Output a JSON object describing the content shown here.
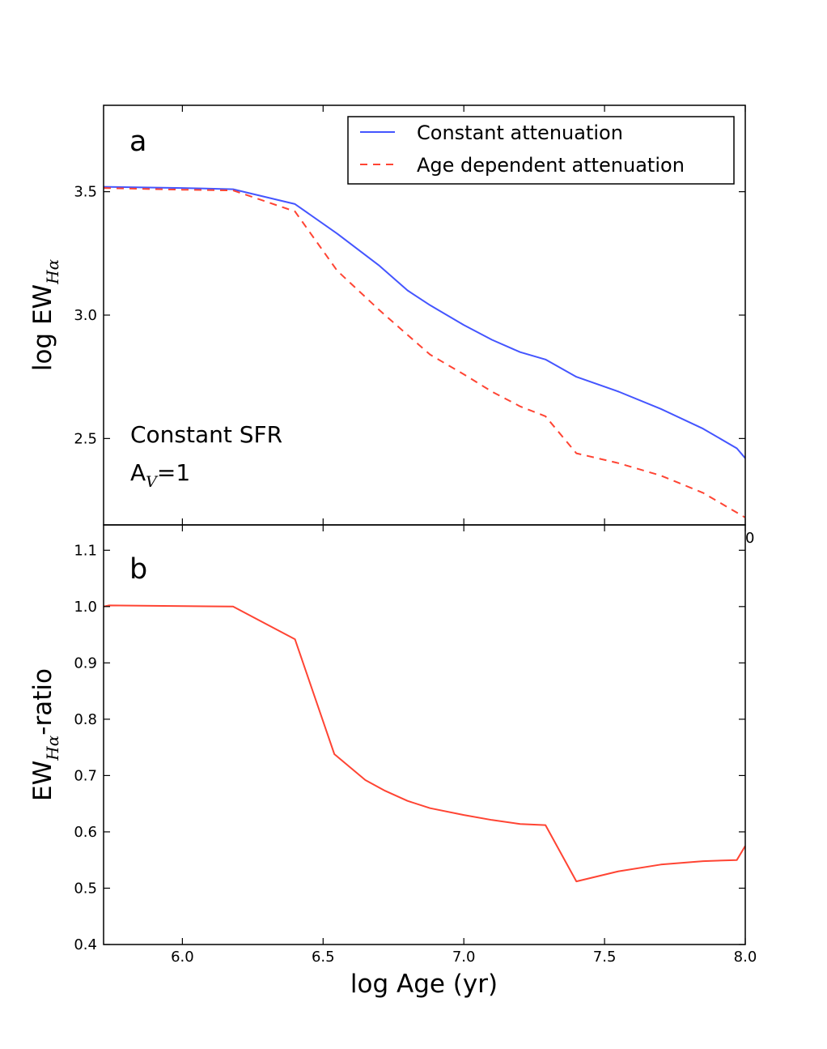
{
  "chart_data": [
    {
      "type": "line",
      "panel": "a",
      "xlabel": "",
      "ylabel_base": "log EW",
      "ylabel_sub": "Hα",
      "xlim": [
        5.72,
        8.0
      ],
      "ylim": [
        2.15,
        3.85
      ],
      "yticks": [
        2.5,
        3.0,
        3.5
      ],
      "ytick_labels": [
        "2.5",
        "3.0",
        "3.5"
      ],
      "xticks": [
        6.0,
        6.5,
        7.0,
        7.5,
        8.0
      ],
      "stray_tick_label": "0",
      "series": [
        {
          "name": "Constant attenuation",
          "color": "#4455ff",
          "style": "solid",
          "x": [
            5.72,
            6.0,
            6.18,
            6.4,
            6.55,
            6.7,
            6.8,
            6.88,
            7.0,
            7.1,
            7.2,
            7.29,
            7.4,
            7.55,
            7.7,
            7.85,
            7.97,
            8.0
          ],
          "y": [
            3.52,
            3.515,
            3.51,
            3.45,
            3.33,
            3.2,
            3.1,
            3.04,
            2.96,
            2.9,
            2.85,
            2.82,
            2.75,
            2.69,
            2.62,
            2.54,
            2.46,
            2.42
          ]
        },
        {
          "name": "Age dependent attenuation",
          "color": "#ff4433",
          "style": "dashed",
          "x": [
            5.72,
            6.0,
            6.18,
            6.4,
            6.55,
            6.7,
            6.8,
            6.88,
            7.0,
            7.1,
            7.2,
            7.29,
            7.4,
            7.55,
            7.7,
            7.85,
            8.0
          ],
          "y": [
            3.515,
            3.508,
            3.505,
            3.42,
            3.18,
            3.02,
            2.92,
            2.84,
            2.76,
            2.69,
            2.63,
            2.59,
            2.44,
            2.4,
            2.35,
            2.28,
            2.18
          ]
        }
      ],
      "legend": {
        "placement": "top-right"
      },
      "annotations": [
        "Constant SFR",
        "A",
        "V",
        "=1"
      ]
    },
    {
      "type": "line",
      "panel": "b",
      "xlabel": "log Age (yr)",
      "ylabel_base": "EW",
      "ylabel_sub": "Hα",
      "ylabel_suffix": "-ratio",
      "xlim": [
        5.72,
        8.0
      ],
      "ylim": [
        0.4,
        1.145
      ],
      "yticks": [
        0.4,
        0.5,
        0.6,
        0.7,
        0.8,
        0.9,
        1.0,
        1.1
      ],
      "ytick_labels": [
        "0.4",
        "0.5",
        "0.6",
        "0.7",
        "0.8",
        "0.9",
        "1.0",
        "1.1"
      ],
      "xticks": [
        6.0,
        6.5,
        7.0,
        7.5,
        8.0
      ],
      "xtick_labels": [
        "6.0",
        "6.5",
        "7.0",
        "7.5",
        "8.0"
      ],
      "series": [
        {
          "name": "EW ratio",
          "color": "#ff4433",
          "style": "solid",
          "x": [
            5.72,
            5.74,
            6.18,
            6.4,
            6.54,
            6.65,
            6.72,
            6.8,
            6.88,
            7.0,
            7.1,
            7.2,
            7.29,
            7.4,
            7.55,
            7.7,
            7.85,
            7.97,
            8.0
          ],
          "y": [
            1.0,
            1.002,
            1.0,
            0.942,
            0.738,
            0.692,
            0.673,
            0.655,
            0.642,
            0.63,
            0.621,
            0.614,
            0.612,
            0.512,
            0.53,
            0.542,
            0.548,
            0.55,
            0.575
          ]
        }
      ]
    }
  ]
}
